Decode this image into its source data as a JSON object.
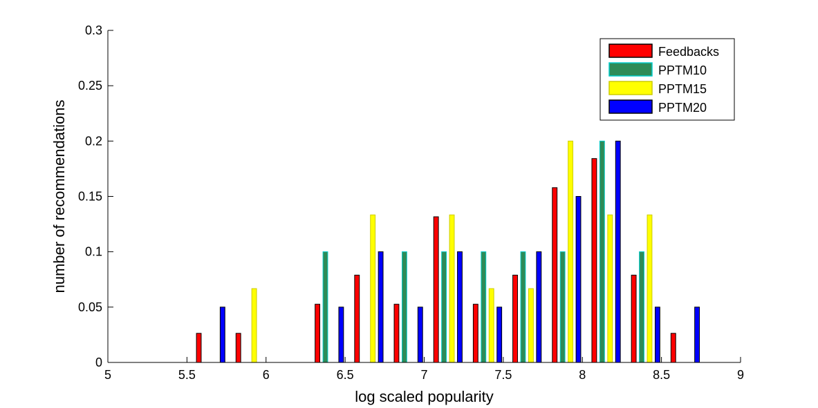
{
  "chart_data": {
    "type": "bar",
    "title": "",
    "xlabel": "log scaled popularity",
    "ylabel": "number of recommendations",
    "xlim": [
      5,
      9
    ],
    "ylim": [
      0,
      0.3
    ],
    "xticks": [
      "5",
      "5.5",
      "6",
      "6.5",
      "7",
      "7.5",
      "8",
      "8.5",
      "9"
    ],
    "yticks": [
      "0",
      "0.05",
      "0.1",
      "0.15",
      "0.2",
      "0.25",
      "0.3"
    ],
    "grid": false,
    "legend_position": "top-right",
    "bin_centers": [
      5.15,
      5.4,
      5.65,
      5.9,
      6.15,
      6.4,
      6.65,
      6.9,
      7.15,
      7.4,
      7.65,
      7.9,
      8.15,
      8.4,
      8.65,
      8.9
    ],
    "series": [
      {
        "name": "Feedbacks",
        "color": "#ff0000",
        "edge": "#000000",
        "values": [
          0,
          0,
          0.0263,
          0.0263,
          0,
          0.0526,
          0.0789,
          0.0526,
          0.1316,
          0.0526,
          0.0789,
          0.1579,
          0.1842,
          0.0789,
          0.0263,
          0
        ]
      },
      {
        "name": "PPTM10",
        "color": "#2e8b57",
        "edge": "#00cccc",
        "values": [
          0,
          0,
          0,
          0,
          0,
          0.1,
          0,
          0.1,
          0.1,
          0.1,
          0.1,
          0.1,
          0.2,
          0.1,
          0,
          0
        ]
      },
      {
        "name": "PPTM15",
        "color": "#ffff00",
        "edge": "#cccc00",
        "values": [
          0,
          0,
          0,
          0.0667,
          0,
          0,
          0.1333,
          0,
          0.1333,
          0.0667,
          0.0667,
          0.2,
          0.1333,
          0.1333,
          0,
          0
        ]
      },
      {
        "name": "PPTM20",
        "color": "#0000ff",
        "edge": "#000000",
        "values": [
          0,
          0,
          0.05,
          0,
          0,
          0.05,
          0.1,
          0.05,
          0.1,
          0.05,
          0.1,
          0.15,
          0.2,
          0.05,
          0.05,
          0
        ]
      }
    ]
  }
}
